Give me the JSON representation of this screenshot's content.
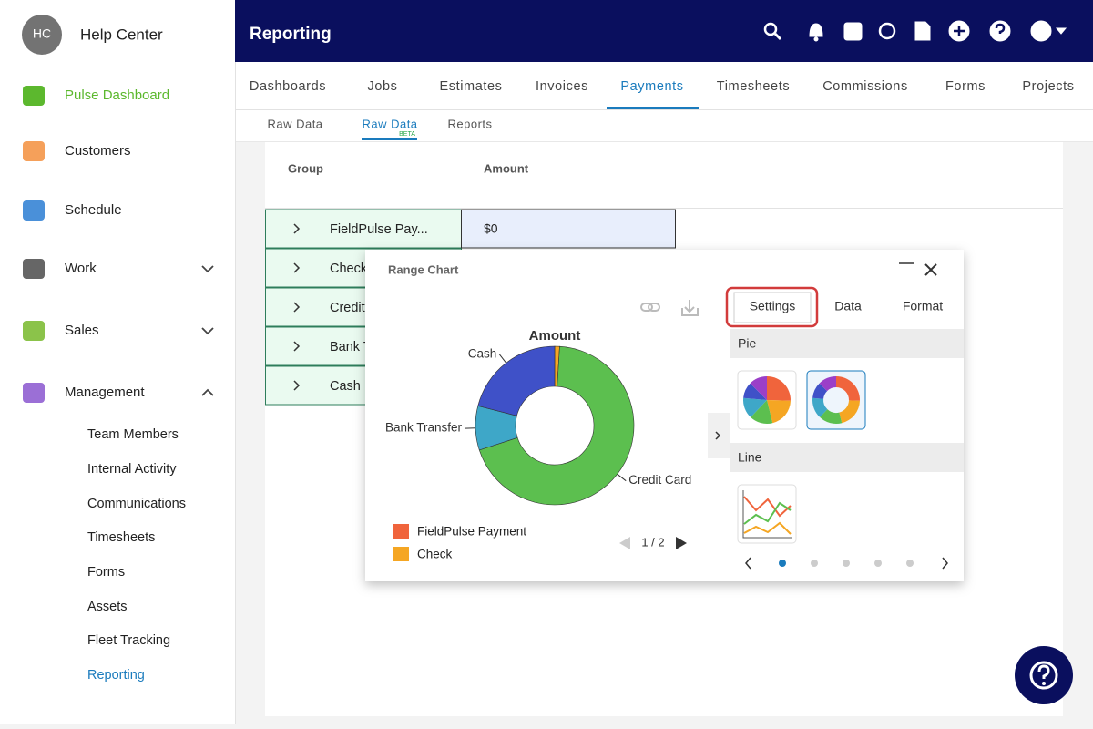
{
  "sidebar": {
    "avatar": "HC",
    "title": "Help Center",
    "items": [
      "Pulse Dashboard",
      "Customers",
      "Schedule",
      "Work",
      "Sales",
      "Management"
    ],
    "subitems": [
      "Team Members",
      "Internal Activity",
      "Communications",
      "Timesheets",
      "Forms",
      "Assets",
      "Fleet Tracking",
      "Reporting"
    ]
  },
  "header": {
    "title": "Reporting"
  },
  "tabs": [
    "Dashboards",
    "Jobs",
    "Estimates",
    "Invoices",
    "Payments",
    "Timesheets",
    "Commissions",
    "Forms",
    "Projects"
  ],
  "subtabs": [
    "Raw Data",
    "Raw Data",
    "Reports"
  ],
  "beta": "BETA",
  "table": {
    "columns": [
      "Group",
      "Amount"
    ],
    "rows": [
      [
        "FieldPulse Pay...",
        "$0"
      ],
      [
        "Check"
      ],
      [
        "Credit Card"
      ],
      [
        "Bank Transfer"
      ],
      [
        "Cash"
      ]
    ]
  },
  "dialog": {
    "title": "Range Chart",
    "tabs": [
      "Settings",
      "Data",
      "Format"
    ],
    "sections": [
      "Pie",
      "Line"
    ],
    "pager": "1 / 2"
  },
  "chart_data": {
    "type": "pie",
    "title": "Amount",
    "categories": [
      "FieldPulse Payment",
      "Check",
      "Credit Card",
      "Bank Transfer",
      "Cash"
    ],
    "values": [
      0,
      1,
      69,
      9,
      21
    ],
    "colors": [
      "#f0643c",
      "#f5a623",
      "#5cbf4f",
      "#3ea7c8",
      "#3f51c8"
    ]
  }
}
